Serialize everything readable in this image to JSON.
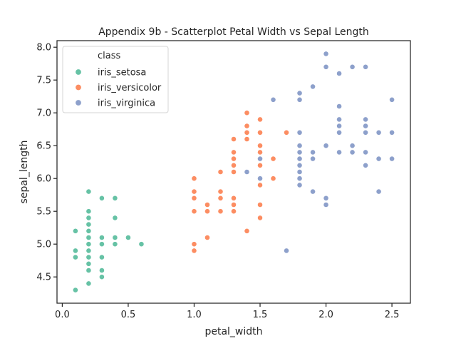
{
  "chart_data": {
    "type": "scatter",
    "title": "Appendix 9b - Scatterplot Petal Width vs Sepal Length",
    "xlabel": "petal_width",
    "ylabel": "sepal_length",
    "xlim": [
      -0.04,
      2.64
    ],
    "ylim": [
      4.1,
      8.1
    ],
    "xticks": [
      0.0,
      0.5,
      1.0,
      1.5,
      2.0,
      2.5
    ],
    "xtick_labels": [
      "0.0",
      "0.5",
      "1.0",
      "1.5",
      "2.0",
      "2.5"
    ],
    "yticks": [
      4.5,
      5.0,
      5.5,
      6.0,
      6.5,
      7.0,
      7.5,
      8.0
    ],
    "ytick_labels": [
      "4.5",
      "5.0",
      "5.5",
      "6.0",
      "6.5",
      "7.0",
      "7.5",
      "8.0"
    ],
    "grid": false,
    "legend": {
      "title": "class",
      "placement": "top-left"
    },
    "series": [
      {
        "name": "iris_setosa",
        "color": "#66c2a5",
        "points": [
          [
            0.1,
            4.3
          ],
          [
            0.1,
            4.8
          ],
          [
            0.1,
            4.9
          ],
          [
            0.1,
            5.2
          ],
          [
            0.2,
            4.4
          ],
          [
            0.2,
            4.6
          ],
          [
            0.2,
            4.7
          ],
          [
            0.2,
            4.8
          ],
          [
            0.2,
            4.9
          ],
          [
            0.2,
            5.0
          ],
          [
            0.2,
            5.1
          ],
          [
            0.2,
            5.2
          ],
          [
            0.2,
            5.3
          ],
          [
            0.2,
            5.4
          ],
          [
            0.2,
            5.5
          ],
          [
            0.2,
            5.8
          ],
          [
            0.3,
            4.5
          ],
          [
            0.3,
            4.6
          ],
          [
            0.3,
            4.8
          ],
          [
            0.3,
            5.0
          ],
          [
            0.3,
            5.1
          ],
          [
            0.3,
            5.7
          ],
          [
            0.4,
            5.0
          ],
          [
            0.4,
            5.1
          ],
          [
            0.4,
            5.4
          ],
          [
            0.4,
            5.7
          ],
          [
            0.5,
            5.1
          ],
          [
            0.6,
            5.0
          ]
        ]
      },
      {
        "name": "iris_versicolor",
        "color": "#fc8d62",
        "points": [
          [
            1.0,
            4.9
          ],
          [
            1.0,
            5.0
          ],
          [
            1.0,
            5.5
          ],
          [
            1.0,
            5.7
          ],
          [
            1.0,
            5.8
          ],
          [
            1.0,
            6.0
          ],
          [
            1.1,
            5.1
          ],
          [
            1.1,
            5.5
          ],
          [
            1.1,
            5.6
          ],
          [
            1.2,
            5.5
          ],
          [
            1.2,
            5.7
          ],
          [
            1.2,
            5.8
          ],
          [
            1.2,
            6.1
          ],
          [
            1.3,
            5.5
          ],
          [
            1.3,
            5.6
          ],
          [
            1.3,
            5.7
          ],
          [
            1.3,
            6.1
          ],
          [
            1.3,
            6.2
          ],
          [
            1.3,
            6.3
          ],
          [
            1.3,
            6.4
          ],
          [
            1.3,
            6.6
          ],
          [
            1.4,
            5.2
          ],
          [
            1.4,
            6.6
          ],
          [
            1.4,
            6.7
          ],
          [
            1.4,
            6.8
          ],
          [
            1.4,
            7.0
          ],
          [
            1.5,
            5.4
          ],
          [
            1.5,
            5.6
          ],
          [
            1.5,
            5.9
          ],
          [
            1.5,
            6.2
          ],
          [
            1.5,
            6.3
          ],
          [
            1.5,
            6.4
          ],
          [
            1.5,
            6.5
          ],
          [
            1.5,
            6.7
          ],
          [
            1.5,
            6.9
          ],
          [
            1.6,
            6.0
          ],
          [
            1.6,
            6.3
          ],
          [
            1.7,
            6.7
          ]
        ]
      },
      {
        "name": "iris_virginica",
        "color": "#8da0cb",
        "points": [
          [
            1.4,
            6.1
          ],
          [
            1.5,
            6.0
          ],
          [
            1.5,
            6.3
          ],
          [
            1.6,
            7.2
          ],
          [
            1.7,
            4.9
          ],
          [
            1.8,
            5.9
          ],
          [
            1.8,
            6.0
          ],
          [
            1.8,
            6.1
          ],
          [
            1.8,
            6.2
          ],
          [
            1.8,
            6.3
          ],
          [
            1.8,
            6.4
          ],
          [
            1.8,
            6.5
          ],
          [
            1.8,
            6.7
          ],
          [
            1.8,
            7.2
          ],
          [
            1.8,
            7.3
          ],
          [
            1.9,
            5.8
          ],
          [
            1.9,
            6.3
          ],
          [
            1.9,
            6.4
          ],
          [
            1.9,
            7.4
          ],
          [
            2.0,
            5.6
          ],
          [
            2.0,
            5.7
          ],
          [
            2.0,
            6.5
          ],
          [
            2.0,
            7.7
          ],
          [
            2.0,
            7.9
          ],
          [
            2.1,
            6.4
          ],
          [
            2.1,
            6.7
          ],
          [
            2.1,
            6.8
          ],
          [
            2.1,
            6.9
          ],
          [
            2.1,
            7.1
          ],
          [
            2.1,
            7.6
          ],
          [
            2.2,
            6.4
          ],
          [
            2.2,
            6.5
          ],
          [
            2.2,
            7.7
          ],
          [
            2.3,
            6.2
          ],
          [
            2.3,
            6.4
          ],
          [
            2.3,
            6.7
          ],
          [
            2.3,
            6.8
          ],
          [
            2.3,
            6.9
          ],
          [
            2.3,
            7.7
          ],
          [
            2.4,
            5.8
          ],
          [
            2.4,
            6.3
          ],
          [
            2.4,
            6.7
          ],
          [
            2.5,
            6.3
          ],
          [
            2.5,
            6.7
          ],
          [
            2.5,
            7.2
          ]
        ]
      }
    ]
  }
}
